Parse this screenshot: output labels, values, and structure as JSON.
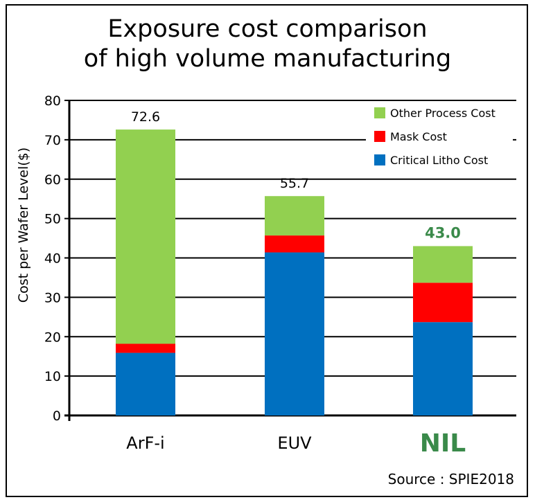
{
  "chart_data": {
    "type": "bar",
    "stacked": true,
    "title": [
      "Exposure cost comparison",
      "of high volume manufacturing"
    ],
    "ylabel": "Cost per Wafer Level($)",
    "xlabel": "",
    "ylim": [
      0,
      80
    ],
    "yticks": [
      0,
      10,
      20,
      30,
      40,
      50,
      60,
      70,
      80
    ],
    "grid": true,
    "legend_position": "top-right",
    "categories": [
      "ArF-i",
      "EUV",
      "NIL"
    ],
    "category_colors": [
      "#000000",
      "#000000",
      "#3a8a4a"
    ],
    "totals": [
      "72.6",
      "55.7",
      "43.0"
    ],
    "total_colors": [
      "#000000",
      "#000000",
      "#3a8a4a"
    ],
    "series": [
      {
        "name": "Critical Litho Cost",
        "color": "#0070c0",
        "values": [
          15.9,
          41.4,
          23.7
        ]
      },
      {
        "name": "Mask Cost",
        "color": "#ff0000",
        "values": [
          2.3,
          4.3,
          10.0
        ]
      },
      {
        "name": "Other Process Cost",
        "color": "#92d050",
        "values": [
          54.4,
          10.0,
          9.3
        ]
      }
    ]
  },
  "source": "Source : SPIE2018"
}
